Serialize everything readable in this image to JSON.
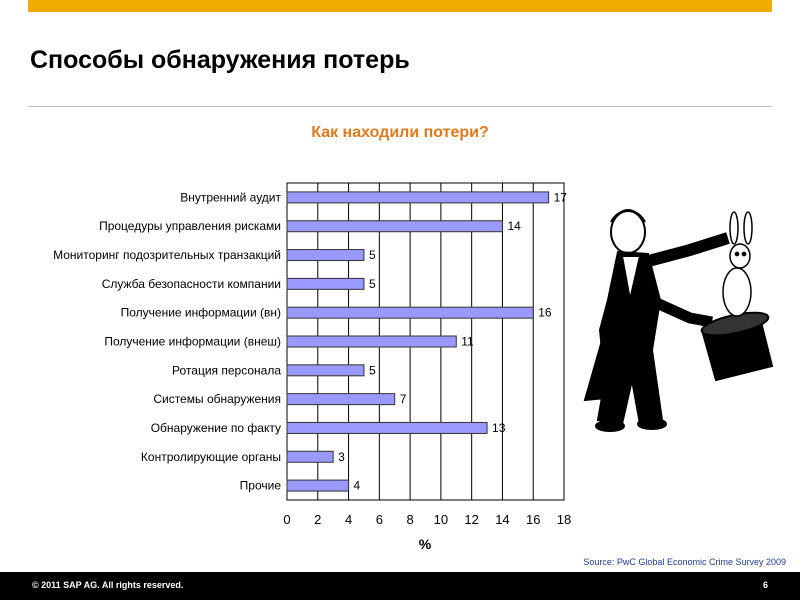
{
  "slide": {
    "title": "Способы обнаружения потерь",
    "source": "Source: PwC Global Economic Crime Survey 2009",
    "copyright": "© 2011 SAP AG. All rights reserved.",
    "page_number": "6"
  },
  "colors": {
    "bar_fill": "#9999ff",
    "bar_stroke": "#333333",
    "accent": "#f0ab00",
    "chart_title": "#e07a1f"
  },
  "illustration": "magician-pulling-rabbit-from-hat",
  "chart_data": {
    "type": "bar",
    "orientation": "horizontal",
    "title": "Как находили потери?",
    "xlabel": "%",
    "ylabel": "",
    "xlim": [
      0,
      18
    ],
    "ticks": [
      0,
      2,
      4,
      6,
      8,
      10,
      12,
      14,
      16,
      18
    ],
    "grid": true,
    "legend": "none",
    "categories": [
      "Внутренний аудит",
      "Процедуры управления рисками",
      "Мониторинг подозрительных транзакций",
      "Служба безопасности компании",
      "Получение информации (вн)",
      "Получение информации (внеш)",
      "Ротация персонала",
      "Системы обнаружения",
      "Обнаружение по факту",
      "Контролирующие органы",
      "Прочие"
    ],
    "values": [
      17,
      14,
      5,
      5,
      16,
      11,
      5,
      7,
      13,
      3,
      4
    ]
  }
}
